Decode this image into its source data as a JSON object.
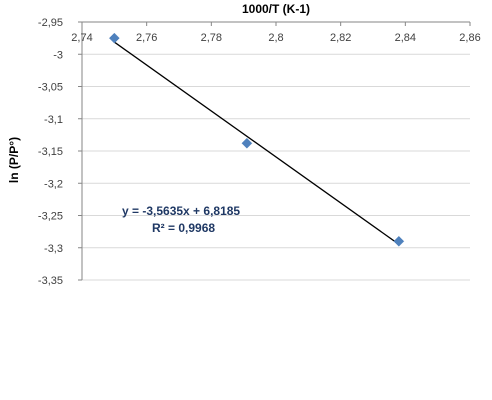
{
  "chart_data": {
    "type": "scatter",
    "title": "",
    "xlabel": "1000/T (K-1)",
    "ylabel": "ln (P/P°)",
    "xlim": [
      2.74,
      2.86
    ],
    "ylim": [
      -3.35,
      -2.95
    ],
    "x_ticks": [
      "2,74",
      "2,76",
      "2,78",
      "2,8",
      "2,82",
      "2,84",
      "2,86"
    ],
    "y_ticks": [
      "-2,95",
      "-3",
      "-3,05",
      "-3,1",
      "-3,15",
      "-3,2",
      "-3,25",
      "-3,3",
      "-3,35"
    ],
    "x_tick_values": [
      2.74,
      2.76,
      2.78,
      2.8,
      2.82,
      2.84,
      2.86
    ],
    "y_tick_values": [
      -2.95,
      -3.0,
      -3.05,
      -3.1,
      -3.15,
      -3.2,
      -3.25,
      -3.3,
      -3.35
    ],
    "x_axis_position": "top",
    "grid": "horizontal",
    "legend": "none",
    "series": [
      {
        "points": [
          {
            "x": 2.75,
            "y": -2.975
          },
          {
            "x": 2.791,
            "y": -3.138
          },
          {
            "x": 2.838,
            "y": -3.29
          }
        ],
        "marker": "diamond",
        "color": "#4f81bd"
      }
    ],
    "trendline": {
      "type": "linear",
      "slope": -3.5635,
      "intercept": 6.8185,
      "x_range": [
        2.75,
        2.838
      ],
      "color": "#000000"
    },
    "annotations": [
      {
        "text": "y = -3,5635x + 6,8185"
      },
      {
        "text": "R² = 0,9968"
      }
    ]
  },
  "colors": {
    "gridline": "#d9d9d9",
    "axis": "#868686",
    "marker": "#4f81bd",
    "annotation": "#1f3864"
  }
}
